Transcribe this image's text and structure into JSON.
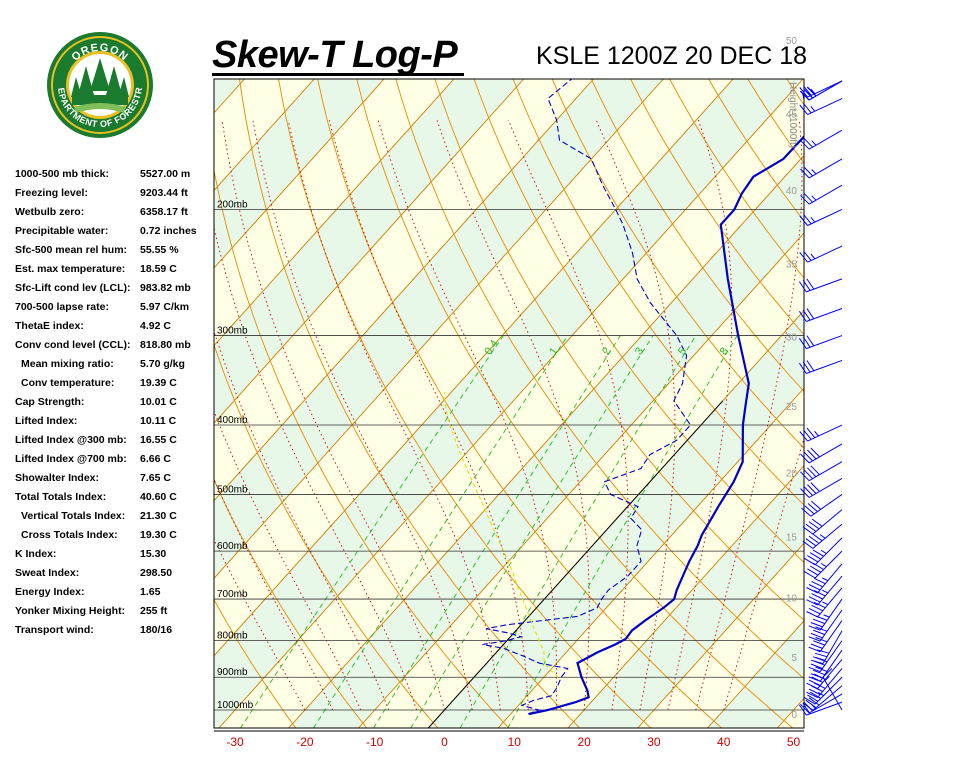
{
  "logo": {
    "top_text": "OREGON",
    "bottom_text": "DEPARTMENT OF FORESTRY",
    "colors": {
      "green": "#1a7a2e",
      "gold": "#e8c020"
    }
  },
  "header": {
    "title": "Skew-T Log-P",
    "station": "KSLE 1200Z 20 DEC 18"
  },
  "indices": [
    {
      "label": "1000-500 mb thick:",
      "value": "5527.00 m"
    },
    {
      "label": "Freezing level:",
      "value": "9203.44 ft"
    },
    {
      "label": "Wetbulb zero:",
      "value": "6358.17 ft"
    },
    {
      "label": "Precipitable water:",
      "value": "0.72 inches"
    },
    {
      "label": "Sfc-500 mean rel hum:",
      "value": "55.55 %"
    },
    {
      "label": "Est. max temperature:",
      "value": "18.59 C"
    },
    {
      "label": "Sfc-Lift cond lev (LCL):",
      "value": "983.82 mb"
    },
    {
      "label": "700-500 lapse rate:",
      "value": "5.97 C/km"
    },
    {
      "label": "ThetaE index:",
      "value": "4.92 C"
    },
    {
      "label": "Conv cond level (CCL):",
      "value": "818.80 mb"
    },
    {
      "label": "Mean mixing ratio:",
      "value": "5.70 g/kg",
      "indent": true
    },
    {
      "label": "Conv temperature:",
      "value": "19.39 C",
      "indent": true
    },
    {
      "label": "Cap Strength:",
      "value": "10.01 C"
    },
    {
      "label": "Lifted Index:",
      "value": "10.11 C"
    },
    {
      "label": "Lifted Index @300 mb:",
      "value": "16.55 C"
    },
    {
      "label": "Lifted Index @700 mb:",
      "value": "6.66 C"
    },
    {
      "label": "Showalter Index:",
      "value": "7.65 C"
    },
    {
      "label": "Total Totals Index:",
      "value": "40.60 C"
    },
    {
      "label": "Vertical Totals Index:",
      "value": "21.30 C",
      "indent": true
    },
    {
      "label": "Cross Totals Index:",
      "value": "19.30 C",
      "indent": true
    },
    {
      "label": "K Index:",
      "value": "15.30"
    },
    {
      "label": "Sweat Index:",
      "value": "298.50"
    },
    {
      "label": "Energy Index:",
      "value": "1.65"
    },
    {
      "label": "Yonker Mixing Height:",
      "value": "255 ft"
    },
    {
      "label": "Transport wind:",
      "value": "180/16"
    }
  ],
  "chart_data": {
    "type": "line",
    "subtype": "skew-t log-p",
    "x_axis": {
      "ticks": [
        -30,
        -20,
        -10,
        0,
        10,
        20,
        30,
        40,
        50
      ],
      "unit": "C",
      "range": [
        -32,
        50
      ]
    },
    "pressure_levels": [
      {
        "p": 200,
        "label": "200mb"
      },
      {
        "p": 300,
        "label": "300mb"
      },
      {
        "p": 400,
        "label": "400mb"
      },
      {
        "p": 500,
        "label": "500mb"
      },
      {
        "p": 600,
        "label": "600mb"
      },
      {
        "p": 700,
        "label": "700mb"
      },
      {
        "p": 800,
        "label": "800mb"
      },
      {
        "p": 900,
        "label": "900mb"
      },
      {
        "p": 1000,
        "label": "1000mb"
      }
    ],
    "height_axis": {
      "label": "Height (1000ft)",
      "ticks": [
        {
          "label": "0",
          "p": 1013
        },
        {
          "label": "5",
          "p": 843
        },
        {
          "label": "10",
          "p": 697
        },
        {
          "label": "15",
          "p": 572
        },
        {
          "label": "20",
          "p": 466
        },
        {
          "label": "25",
          "p": 376
        },
        {
          "label": "30",
          "p": 301
        },
        {
          "label": "35",
          "p": 238
        },
        {
          "label": "40",
          "p": 188
        },
        {
          "label": "45",
          "p": 147
        },
        {
          "label": "50",
          "p": 116
        }
      ]
    },
    "mixing_ratio_labels": [
      "0.4",
      "1",
      "2",
      "3",
      "5",
      "8"
    ],
    "series": [
      {
        "role": "temperature",
        "color": "#0000cc",
        "points": [
          [
            1013,
            12.6
          ],
          [
            1000,
            14.8
          ],
          [
            975,
            17.8
          ],
          [
            960,
            19.0
          ],
          [
            940,
            18.0
          ],
          [
            900,
            15.4
          ],
          [
            860,
            13.0
          ],
          [
            830,
            14.5
          ],
          [
            810,
            16.0
          ],
          [
            795,
            16.8
          ],
          [
            775,
            16.6
          ],
          [
            750,
            17.2
          ],
          [
            720,
            18.2
          ],
          [
            700,
            18.6
          ],
          [
            680,
            17.8
          ],
          [
            620,
            15.9
          ],
          [
            590,
            15.1
          ],
          [
            570,
            14.3
          ],
          [
            550,
            13.8
          ],
          [
            520,
            13.0
          ],
          [
            480,
            12.0
          ],
          [
            450,
            10.7
          ],
          [
            400,
            6.0
          ],
          [
            375,
            3.8
          ],
          [
            350,
            1.5
          ],
          [
            300,
            -6.2
          ],
          [
            250,
            -15.0
          ],
          [
            210,
            -23.0
          ],
          [
            200,
            -23.0
          ],
          [
            190,
            -24.0
          ],
          [
            180,
            -24.5
          ],
          [
            170,
            -22.5
          ],
          [
            155,
            -22.4
          ],
          [
            145,
            -25.5
          ],
          [
            138,
            -28.0
          ],
          [
            125,
            -27.9
          ],
          [
            118,
            -29.0
          ],
          [
            110,
            -30.2
          ],
          [
            104,
            -31.0
          ],
          [
            100,
            -31.5
          ]
        ]
      },
      {
        "role": "dewpoint",
        "color": "#0000cc",
        "points": [
          [
            1013,
            12.5
          ],
          [
            1000,
            13.5
          ],
          [
            985,
            10.5
          ],
          [
            970,
            11.5
          ],
          [
            955,
            13.5
          ],
          [
            930,
            13.2
          ],
          [
            900,
            12.5
          ],
          [
            875,
            12.3
          ],
          [
            860,
            7.5
          ],
          [
            840,
            4.2
          ],
          [
            820,
            0.5
          ],
          [
            810,
            -3.0
          ],
          [
            800,
            0.0
          ],
          [
            790,
            1.5
          ],
          [
            780,
            -1.0
          ],
          [
            770,
            -4.5
          ],
          [
            760,
            -2.0
          ],
          [
            740,
            7.0
          ],
          [
            720,
            8.7
          ],
          [
            700,
            8.2
          ],
          [
            680,
            8.0
          ],
          [
            650,
            9.0
          ],
          [
            620,
            9.0
          ],
          [
            590,
            6.4
          ],
          [
            560,
            5.0
          ],
          [
            540,
            2.0
          ],
          [
            520,
            1.5
          ],
          [
            500,
            -4.0
          ],
          [
            480,
            -6.5
          ],
          [
            460,
            -3.0
          ],
          [
            440,
            -3.5
          ],
          [
            420,
            -1.5
          ],
          [
            400,
            -1.5
          ],
          [
            370,
            -7.0
          ],
          [
            350,
            -8.0
          ],
          [
            320,
            -11.0
          ],
          [
            300,
            -15.0
          ],
          [
            270,
            -23.0
          ],
          [
            250,
            -28.0
          ],
          [
            230,
            -32.0
          ],
          [
            210,
            -37.0
          ],
          [
            200,
            -40.0
          ],
          [
            185,
            -45.0
          ],
          [
            170,
            -50.0
          ],
          [
            160,
            -57.0
          ],
          [
            150,
            -60.0
          ],
          [
            140,
            -64.0
          ],
          [
            130,
            -63.0
          ],
          [
            120,
            -63.0
          ],
          [
            110,
            -64.0
          ],
          [
            100,
            -68.0
          ]
        ]
      },
      {
        "role": "parcel",
        "color": "#e0e000",
        "points": [
          [
            900,
            12.0
          ],
          [
            860,
            8.2
          ],
          [
            830,
            6.8
          ],
          [
            800,
            4.6
          ],
          [
            760,
            1.6
          ],
          [
            720,
            -1.5
          ],
          [
            680,
            -4.8
          ],
          [
            640,
            -8.2
          ],
          [
            600,
            -12.0
          ],
          [
            560,
            -16.2
          ],
          [
            520,
            -20.6
          ],
          [
            480,
            -25.4
          ],
          [
            440,
            -30.6
          ],
          [
            400,
            -36.0
          ],
          [
            380,
            -38.6
          ],
          [
            360,
            -41.0
          ]
        ]
      }
    ],
    "wind_barbs": {
      "color": "#0000ff",
      "units": "kt",
      "levels": [
        {
          "p": 1000,
          "dir": 330,
          "spd": 15
        },
        {
          "p": 975,
          "dir": 250,
          "spd": 20
        },
        {
          "p": 950,
          "dir": 240,
          "spd": 25
        },
        {
          "p": 925,
          "dir": 230,
          "spd": 30
        },
        {
          "p": 900,
          "dir": 225,
          "spd": 35
        },
        {
          "p": 875,
          "dir": 220,
          "spd": 40
        },
        {
          "p": 850,
          "dir": 220,
          "spd": 40
        },
        {
          "p": 825,
          "dir": 215,
          "spd": 40
        },
        {
          "p": 800,
          "dir": 215,
          "spd": 40
        },
        {
          "p": 775,
          "dir": 210,
          "spd": 40
        },
        {
          "p": 750,
          "dir": 215,
          "spd": 40
        },
        {
          "p": 725,
          "dir": 215,
          "spd": 40
        },
        {
          "p": 700,
          "dir": 215,
          "spd": 45
        },
        {
          "p": 675,
          "dir": 220,
          "spd": 45
        },
        {
          "p": 650,
          "dir": 220,
          "spd": 45
        },
        {
          "p": 625,
          "dir": 220,
          "spd": 45
        },
        {
          "p": 600,
          "dir": 225,
          "spd": 45
        },
        {
          "p": 575,
          "dir": 225,
          "spd": 45
        },
        {
          "p": 550,
          "dir": 230,
          "spd": 45
        },
        {
          "p": 525,
          "dir": 230,
          "spd": 40
        },
        {
          "p": 500,
          "dir": 235,
          "spd": 40
        },
        {
          "p": 475,
          "dir": 240,
          "spd": 40
        },
        {
          "p": 450,
          "dir": 240,
          "spd": 40
        },
        {
          "p": 425,
          "dir": 240,
          "spd": 40
        },
        {
          "p": 400,
          "dir": 245,
          "spd": 35
        },
        {
          "p": 325,
          "dir": 250,
          "spd": 30
        },
        {
          "p": 300,
          "dir": 250,
          "spd": 30
        },
        {
          "p": 275,
          "dir": 250,
          "spd": 30
        },
        {
          "p": 250,
          "dir": 250,
          "spd": 30
        },
        {
          "p": 225,
          "dir": 245,
          "spd": 25
        },
        {
          "p": 200,
          "dir": 245,
          "spd": 25
        },
        {
          "p": 185,
          "dir": 240,
          "spd": 25
        },
        {
          "p": 170,
          "dir": 240,
          "spd": 25
        },
        {
          "p": 155,
          "dir": 240,
          "spd": 25
        },
        {
          "p": 140,
          "dir": 245,
          "spd": 25
        },
        {
          "p": 125,
          "dir": 245,
          "spd": 25
        },
        {
          "p": 115,
          "dir": 240,
          "spd": 30
        },
        {
          "p": 105,
          "dir": 240,
          "spd": 30
        },
        {
          "p": 100,
          "dir": 240,
          "spd": 30
        }
      ]
    },
    "colors": {
      "dry_adiabat": "#ee8800",
      "isotherm": "#d07c00",
      "moist_adiabat": "#cc0000",
      "mixing_ratio": "#22bb22",
      "isobar": "#333333",
      "band_yellow": "#ffffe6",
      "band_green": "#e8f8e8"
    }
  }
}
